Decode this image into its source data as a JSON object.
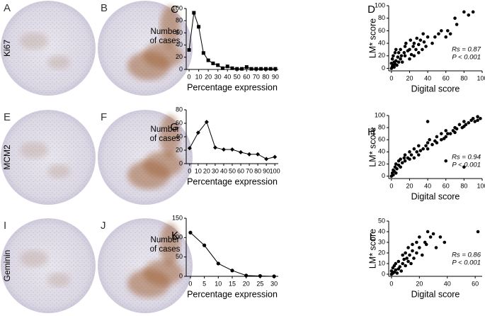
{
  "row_labels": [
    "Ki67",
    "MCM2",
    "Geminin"
  ],
  "image_panels": [
    "A",
    "B",
    "E",
    "F",
    "I",
    "J"
  ],
  "chart_data": [
    {
      "type": "line",
      "panel": "C",
      "x_label": "Percentage expression",
      "y_label": "Number of cases",
      "marker": "square",
      "x": [
        0,
        5,
        10,
        15,
        20,
        25,
        30,
        35,
        40,
        45,
        50,
        55,
        60,
        65,
        70,
        75,
        80,
        85,
        90
      ],
      "values": [
        32,
        93,
        70,
        27,
        15,
        10,
        7,
        2,
        5,
        2,
        1,
        1,
        4,
        1,
        1,
        1,
        1,
        1,
        1
      ],
      "xlim": [
        -3,
        93
      ],
      "ylim": [
        0,
        100
      ],
      "xticks": [
        0,
        10,
        20,
        30,
        40,
        50,
        60,
        70,
        80,
        90
      ],
      "yticks": [
        0,
        20,
        40,
        60,
        80,
        100
      ]
    },
    {
      "type": "scatter",
      "panel": "D",
      "x_label": "Digital score",
      "y_label": "LM* score",
      "x": [
        0,
        0,
        1,
        1,
        2,
        2,
        3,
        3,
        4,
        4,
        5,
        5,
        6,
        7,
        8,
        8,
        10,
        10,
        11,
        12,
        14,
        15,
        15,
        16,
        18,
        20,
        20,
        21,
        22,
        24,
        25,
        25,
        27,
        28,
        30,
        30,
        32,
        34,
        35,
        36,
        38,
        40,
        45,
        48,
        52,
        55,
        60,
        62,
        65,
        70,
        72,
        80,
        85,
        90
      ],
      "values": [
        0,
        8,
        3,
        15,
        5,
        20,
        2,
        10,
        25,
        7,
        12,
        30,
        5,
        18,
        10,
        25,
        15,
        30,
        20,
        10,
        25,
        20,
        35,
        40,
        28,
        15,
        30,
        45,
        22,
        35,
        20,
        40,
        30,
        48,
        25,
        38,
        45,
        30,
        55,
        42,
        35,
        50,
        40,
        50,
        55,
        60,
        50,
        60,
        55,
        80,
        70,
        90,
        85,
        90
      ],
      "xlim": [
        -3,
        100
      ],
      "ylim": [
        -4,
        100
      ],
      "xticks": [
        0,
        20,
        40,
        60,
        80,
        100
      ],
      "yticks": [
        0,
        20,
        40,
        60,
        80,
        100
      ],
      "annotations": [
        "Rs = 0.87",
        "P < 0.001"
      ]
    },
    {
      "type": "line",
      "panel": "G",
      "x_label": "Percentage expression",
      "y_label": "Number of cases",
      "marker": "diamond",
      "x": [
        0,
        10,
        20,
        30,
        40,
        50,
        60,
        70,
        80,
        90,
        100
      ],
      "values": [
        23,
        46,
        62,
        24,
        21,
        21,
        17,
        14,
        14,
        7,
        10
      ],
      "xlim": [
        -4,
        104
      ],
      "ylim": [
        0,
        80
      ],
      "xticks": [
        0,
        10,
        20,
        30,
        40,
        50,
        60,
        70,
        80,
        90,
        100
      ],
      "yticks": [
        0,
        20,
        40,
        60,
        80
      ]
    },
    {
      "type": "scatter",
      "panel": "H",
      "x_label": "Digital score",
      "y_label": "LM* score",
      "x": [
        0,
        1,
        2,
        2,
        3,
        4,
        5,
        5,
        6,
        8,
        8,
        10,
        10,
        12,
        14,
        15,
        15,
        18,
        20,
        20,
        22,
        25,
        25,
        28,
        30,
        30,
        32,
        35,
        38,
        40,
        40,
        42,
        45,
        48,
        50,
        50,
        55,
        55,
        58,
        60,
        60,
        62,
        65,
        68,
        70,
        70,
        72,
        75,
        78,
        80,
        80,
        82,
        85,
        88,
        90,
        92,
        95,
        95,
        98,
        40,
        60,
        80
      ],
      "values": [
        0,
        5,
        2,
        10,
        8,
        15,
        5,
        20,
        12,
        18,
        25,
        15,
        28,
        22,
        30,
        25,
        35,
        30,
        28,
        40,
        35,
        30,
        45,
        40,
        35,
        50,
        42,
        45,
        50,
        45,
        55,
        60,
        52,
        58,
        55,
        65,
        60,
        70,
        62,
        65,
        75,
        70,
        70,
        75,
        72,
        80,
        78,
        85,
        80,
        82,
        90,
        85,
        88,
        92,
        95,
        90,
        92,
        98,
        95,
        90,
        25,
        15
      ],
      "xlim": [
        -3,
        100
      ],
      "ylim": [
        -4,
        100
      ],
      "xticks": [
        0,
        20,
        40,
        60,
        80,
        100
      ],
      "yticks": [
        0,
        20,
        40,
        60,
        80,
        100
      ],
      "annotations": [
        "Rs = 0.94",
        "P < 0.001"
      ]
    },
    {
      "type": "line",
      "panel": "K",
      "x_label": "Percentage expression",
      "y_label": "Number of cases",
      "marker": "circle",
      "x": [
        0,
        5,
        10,
        15,
        20,
        25,
        30
      ],
      "values": [
        113,
        80,
        33,
        15,
        2,
        1,
        0
      ],
      "xlim": [
        -1.5,
        31.5
      ],
      "ylim": [
        0,
        150
      ],
      "xticks": [
        0,
        5,
        10,
        15,
        20,
        25,
        30
      ],
      "yticks": [
        0,
        50,
        100,
        150
      ]
    },
    {
      "type": "scatter",
      "panel": "L",
      "x_label": "Digital score",
      "y_label": "LM* score",
      "x": [
        0,
        0,
        1,
        1,
        2,
        2,
        3,
        3,
        4,
        5,
        5,
        6,
        7,
        8,
        8,
        9,
        10,
        10,
        11,
        12,
        12,
        13,
        14,
        15,
        15,
        16,
        18,
        18,
        20,
        20,
        22,
        24,
        25,
        26,
        28,
        30,
        32,
        35,
        38,
        62
      ],
      "values": [
        0,
        3,
        1,
        6,
        2,
        8,
        4,
        10,
        1,
        5,
        12,
        7,
        3,
        10,
        18,
        14,
        8,
        20,
        15,
        12,
        25,
        18,
        10,
        22,
        28,
        15,
        20,
        30,
        25,
        35,
        18,
        30,
        28,
        40,
        35,
        38,
        25,
        35,
        30,
        40
      ],
      "xlim": [
        -2,
        65
      ],
      "ylim": [
        -2,
        50
      ],
      "xticks": [
        0,
        20,
        40,
        60
      ],
      "yticks": [
        0,
        10,
        20,
        30,
        40,
        50
      ],
      "annotations": [
        "Rs = 0.86",
        "P < 0.001"
      ]
    }
  ]
}
